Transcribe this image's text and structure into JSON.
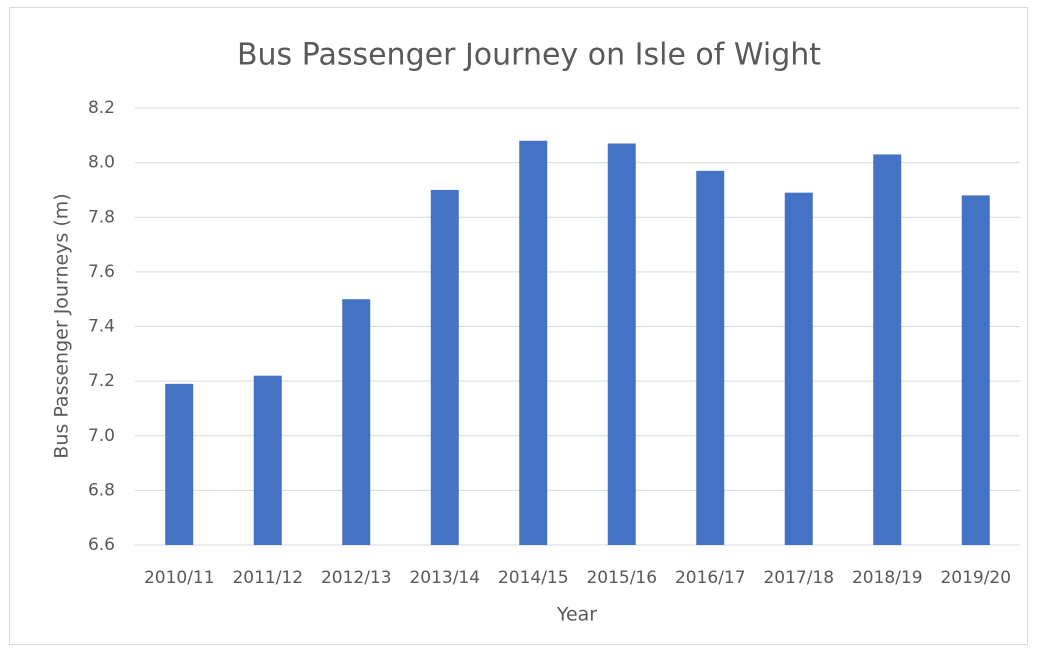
{
  "chart_data": {
    "type": "bar",
    "title": "Bus Passenger Journey on Isle of Wight",
    "x_label": "Year",
    "y_label": "Bus Passenger Journeys (m)",
    "categories": [
      "2010/11",
      "2011/12",
      "2012/13",
      "2013/14",
      "2014/15",
      "2015/16",
      "2016/17",
      "2017/18",
      "2018/19",
      "2019/20"
    ],
    "values": [
      7.19,
      7.22,
      7.5,
      7.9,
      8.08,
      8.07,
      7.97,
      7.89,
      8.03,
      7.88
    ],
    "color": "#4472c4",
    "ylim": [
      6.6,
      8.2
    ],
    "yticks": [
      6.6,
      6.8,
      {
        "value": 7,
        "label": "7.0"
      },
      7.2,
      7.4,
      7.6,
      7.8,
      {
        "value": 8,
        "label": "8.0"
      },
      8.2
    ],
    "grid": true
  }
}
